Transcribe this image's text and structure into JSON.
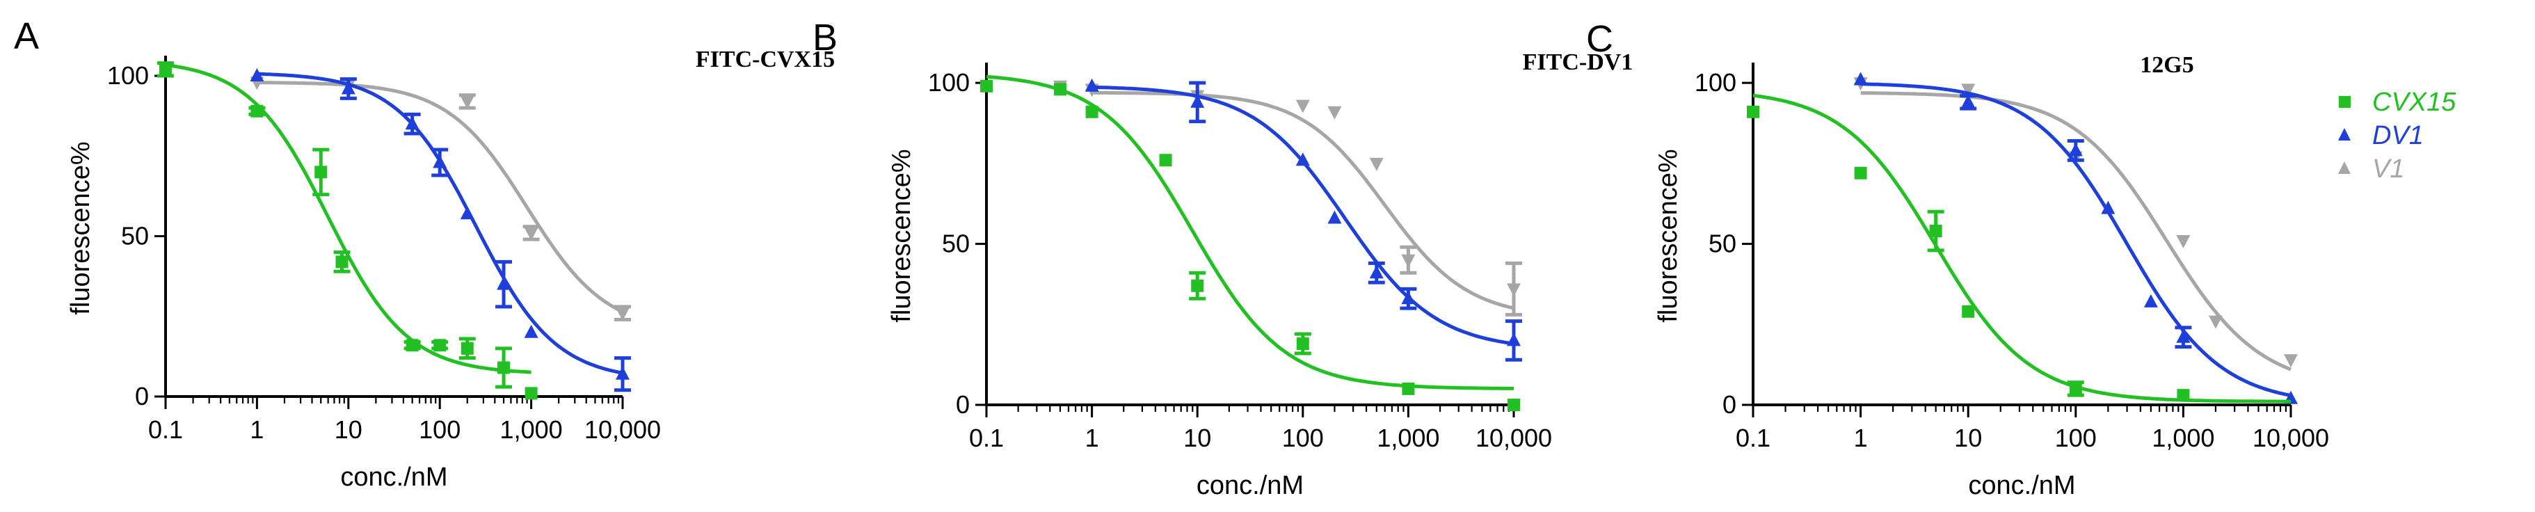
{
  "colors": {
    "CVX15": "#22c022",
    "DV1": "#1f3fdb",
    "V1": "#a6a6a6"
  },
  "legend": [
    {
      "name": "CVX15",
      "marker": "square",
      "color": "#22c022"
    },
    {
      "name": "DV1",
      "marker": "triangle-up",
      "color": "#1f3fdb"
    },
    {
      "name": "V1",
      "marker": "triangle-up",
      "color": "#a6a6a6"
    }
  ],
  "chart_data": [
    {
      "type": "scatter",
      "panel": "A",
      "title": "FITC-CVX15",
      "xlabel": "conc./nM",
      "ylabel": "fluorescence%",
      "xscale": "log",
      "xlim": [
        0.1,
        10000
      ],
      "ylim": [
        0,
        105
      ],
      "xticks": [
        0.1,
        1,
        10,
        100,
        1000,
        10000
      ],
      "xtick_labels": [
        "0.1",
        "1",
        "10",
        "100",
        "1,000",
        "10,000"
      ],
      "yticks": [
        0,
        50,
        100
      ],
      "ytick_labels": [
        "0",
        "50",
        "100"
      ],
      "series": [
        {
          "name": "CVX15",
          "marker": "square",
          "x": [
            0.1,
            1,
            5,
            8.5,
            50,
            100,
            200,
            500,
            1000
          ],
          "y": [
            102,
            89,
            70,
            42,
            16,
            16,
            15,
            9,
            1
          ],
          "err": [
            2,
            1,
            7,
            3,
            1,
            1,
            3,
            6,
            0
          ],
          "fit": {
            "top": 105,
            "bottom": 7,
            "ic50": 6,
            "hill": 1.0,
            "x_from": 0.1,
            "x_to": 1000
          }
        },
        {
          "name": "DV1",
          "marker": "triangle-up",
          "x": [
            1,
            10,
            50,
            100,
            200,
            500,
            1000,
            10000
          ],
          "y": [
            100,
            96,
            85,
            73,
            57,
            35,
            20,
            7
          ],
          "err": [
            0,
            3,
            3,
            4,
            0,
            7,
            0,
            5
          ],
          "fit": {
            "top": 101,
            "bottom": 5,
            "ic50": 250,
            "hill": 1.0,
            "x_from": 1,
            "x_to": 10000
          }
        },
        {
          "name": "V1",
          "marker": "triangle-down",
          "x": [
            1,
            10,
            200,
            1000,
            10000
          ],
          "y": [
            98,
            97,
            92,
            51,
            26
          ],
          "err": [
            0,
            0,
            2,
            2,
            2
          ],
          "fit": {
            "top": 98,
            "bottom": 20,
            "ic50": 900,
            "hill": 1.0,
            "x_from": 1,
            "x_to": 10000
          }
        }
      ]
    },
    {
      "type": "scatter",
      "panel": "B",
      "title": "FITC-DV1",
      "xlabel": "conc./nM",
      "ylabel": "fluorescence%",
      "xscale": "log",
      "xlim": [
        0.1,
        10000
      ],
      "ylim": [
        0,
        105
      ],
      "xticks": [
        0.1,
        1,
        10,
        100,
        1000,
        10000
      ],
      "xtick_labels": [
        "0.1",
        "1",
        "10",
        "100",
        "1,000",
        "10,000"
      ],
      "yticks": [
        0,
        50,
        100
      ],
      "ytick_labels": [
        "0",
        "50",
        "100"
      ],
      "series": [
        {
          "name": "CVX15",
          "marker": "square",
          "x": [
            0.1,
            0.5,
            1,
            5,
            10,
            100,
            1000,
            10000
          ],
          "y": [
            99,
            98,
            91,
            76,
            37,
            19,
            5,
            0
          ],
          "err": [
            0,
            0,
            0,
            0,
            4,
            3,
            0,
            0
          ],
          "fit": {
            "top": 103,
            "bottom": 5,
            "ic50": 9,
            "hill": 1.0,
            "x_from": 0.1,
            "x_to": 10000
          }
        },
        {
          "name": "DV1",
          "marker": "triangle-up",
          "x": [
            1,
            10,
            100,
            200,
            500,
            1000,
            10000
          ],
          "y": [
            99,
            94,
            76,
            58,
            41,
            33,
            20
          ],
          "err": [
            0,
            6,
            0,
            0,
            3,
            3,
            6
          ],
          "fit": {
            "top": 99,
            "bottom": 17,
            "ic50": 250,
            "hill": 1.0,
            "x_from": 1,
            "x_to": 10000
          }
        },
        {
          "name": "V1",
          "marker": "triangle-down",
          "x": [
            0.5,
            1,
            10,
            100,
            200,
            500,
            1000,
            10000
          ],
          "y": [
            99,
            98,
            96,
            93,
            91,
            75,
            45,
            36
          ],
          "err": [
            0,
            0,
            0,
            0,
            0,
            0,
            4,
            8
          ],
          "fit": {
            "top": 97,
            "bottom": 27,
            "ic50": 600,
            "hill": 1.1,
            "x_from": 1,
            "x_to": 10000
          }
        }
      ]
    },
    {
      "type": "scatter",
      "panel": "C",
      "title": "12G5",
      "xlabel": "conc./nM",
      "ylabel": "fluorescence%",
      "xscale": "log",
      "xlim": [
        0.1,
        10000
      ],
      "ylim": [
        0,
        105
      ],
      "xticks": [
        0.1,
        1,
        10,
        100,
        1000,
        10000
      ],
      "xtick_labels": [
        "0.1",
        "1",
        "10",
        "100",
        "1,000",
        "10,000"
      ],
      "yticks": [
        0,
        50,
        100
      ],
      "ytick_labels": [
        "0",
        "50",
        "100"
      ],
      "series": [
        {
          "name": "CVX15",
          "marker": "square",
          "x": [
            0.1,
            1,
            5,
            10,
            100,
            1000
          ],
          "y": [
            91,
            72,
            54,
            29,
            5,
            3
          ],
          "err": [
            0,
            0,
            6,
            0,
            2,
            0
          ],
          "fit": {
            "top": 98,
            "bottom": 1,
            "ic50": 5,
            "hill": 1.0,
            "x_from": 0.1,
            "x_to": 10000
          }
        },
        {
          "name": "DV1",
          "marker": "triangle-up",
          "x": [
            1,
            10,
            100,
            200,
            500,
            1000,
            10000
          ],
          "y": [
            101,
            94,
            79,
            61,
            32,
            21,
            2
          ],
          "err": [
            0,
            2,
            3,
            0,
            0,
            3,
            0
          ],
          "fit": {
            "top": 100,
            "bottom": 0,
            "ic50": 300,
            "hill": 1.0,
            "x_from": 1,
            "x_to": 10000
          }
        },
        {
          "name": "V1",
          "marker": "triangle-down",
          "x": [
            1,
            10,
            100,
            1000,
            2000,
            10000
          ],
          "y": [
            100,
            98,
            77,
            51,
            26,
            14
          ],
          "err": [
            0,
            0,
            0,
            0,
            0,
            0
          ],
          "fit": {
            "top": 97,
            "bottom": 5,
            "ic50": 700,
            "hill": 1.0,
            "x_from": 1,
            "x_to": 10000
          }
        }
      ]
    }
  ]
}
